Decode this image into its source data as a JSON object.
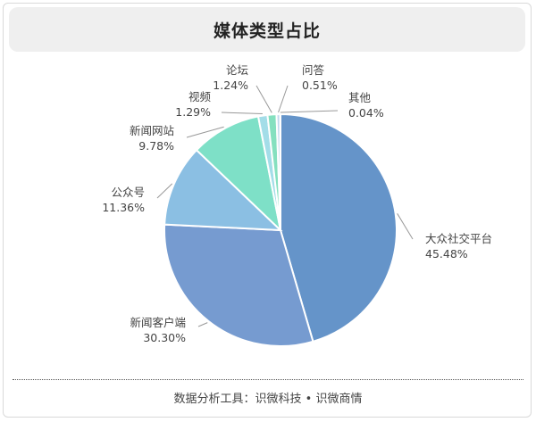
{
  "chart_data": {
    "type": "pie",
    "title": "媒体类型占比",
    "slices": [
      {
        "label": "大众社交平台",
        "value_text": "45.48%",
        "value": 45.48,
        "color": "#6594c9"
      },
      {
        "label": "新闻客户端",
        "value_text": "30.30%",
        "value": 30.3,
        "color": "#769bd0"
      },
      {
        "label": "公众号",
        "value_text": "11.36%",
        "value": 11.36,
        "color": "#8bbfe3"
      },
      {
        "label": "新闻网站",
        "value_text": "9.78%",
        "value": 9.78,
        "color": "#7ee0c7"
      },
      {
        "label": "视频",
        "value_text": "1.29%",
        "value": 1.29,
        "color": "#a3dde8"
      },
      {
        "label": "论坛",
        "value_text": "1.24%",
        "value": 1.24,
        "color": "#85e0bf"
      },
      {
        "label": "问答",
        "value_text": "0.51%",
        "value": 0.51,
        "color": "#c2d8ee"
      },
      {
        "label": "其他",
        "value_text": "0.04%",
        "value": 0.04,
        "color": "#9db6d8"
      }
    ],
    "source": "数据分析工具：识微科技 • 识微商情"
  }
}
